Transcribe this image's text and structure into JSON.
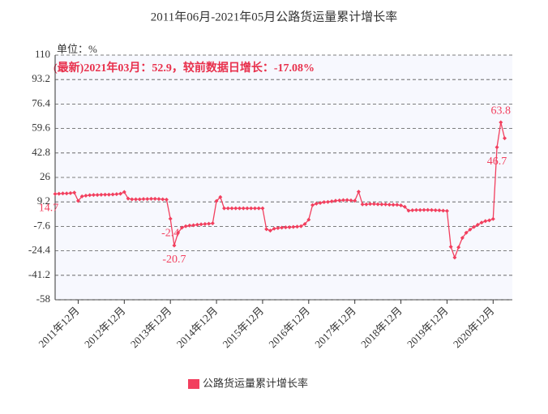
{
  "chart_data": {
    "type": "line",
    "title": "2011年06月-2021年05月公路货运量累计增长率",
    "unit_label": "单位：%",
    "annotation": "(最新)2021年03月：52.9，较前数据日增长：-17.08%",
    "categories": [
      null,
      null,
      null,
      null,
      null,
      null,
      "2011年12月",
      null,
      null,
      null,
      null,
      null,
      null,
      null,
      null,
      null,
      null,
      null,
      "2012年12月",
      null,
      null,
      null,
      null,
      null,
      null,
      null,
      null,
      null,
      null,
      null,
      "2013年12月",
      null,
      null,
      null,
      null,
      null,
      null,
      null,
      null,
      null,
      null,
      null,
      "2014年12月",
      null,
      null,
      null,
      null,
      null,
      null,
      null,
      null,
      null,
      null,
      null,
      "2015年12月",
      null,
      null,
      null,
      null,
      null,
      null,
      null,
      null,
      null,
      null,
      null,
      "2016年12月",
      null,
      null,
      null,
      null,
      null,
      null,
      null,
      null,
      null,
      null,
      null,
      "2017年12月",
      null,
      null,
      null,
      null,
      null,
      null,
      null,
      null,
      null,
      null,
      null,
      "2018年12月",
      null,
      null,
      null,
      null,
      null,
      null,
      null,
      null,
      null,
      null,
      null,
      "2019年12月",
      null,
      null,
      null,
      null,
      null,
      null,
      null,
      null,
      null,
      null,
      null,
      "2020年12月",
      null,
      null,
      null,
      null,
      null
    ],
    "series": [
      {
        "name": "公路货运量累计增长率",
        "color": "#f23f5e",
        "values": [
          14.7,
          14.8,
          15,
          15,
          15.2,
          15.6,
          9.9,
          13,
          13.5,
          13.8,
          14,
          14,
          14.1,
          14.2,
          14.2,
          14.3,
          14.5,
          14.8,
          16,
          11.5,
          11,
          11,
          11,
          11.2,
          11.2,
          11.3,
          11.3,
          11.2,
          11,
          10.8,
          -2.4,
          -20.7,
          -12,
          -8.5,
          -7.5,
          -7,
          -6.8,
          -6.5,
          -6.2,
          -6,
          -5.8,
          -5.5,
          9.8,
          12.5,
          4.8,
          4.8,
          4.8,
          4.8,
          4.8,
          4.8,
          4.8,
          4.8,
          4.8,
          4.8,
          4.8,
          -9.5,
          -10.5,
          -9.2,
          -8.8,
          -8.5,
          -8.3,
          -8.2,
          -8,
          -7.8,
          -7.5,
          -6,
          -3,
          7,
          8,
          8.5,
          9,
          9.2,
          9.6,
          10,
          10.2,
          10.4,
          10.5,
          10.2,
          10,
          16.2,
          7.5,
          7.5,
          7.8,
          7.8,
          7.6,
          7.5,
          7.5,
          7.3,
          7.2,
          7.2,
          6.8,
          5.8,
          3.2,
          3.5,
          3.6,
          3.6,
          3.7,
          3.7,
          3.6,
          3.5,
          3.4,
          3.2,
          3,
          -21.6,
          -29,
          -22,
          -15.5,
          -12,
          -9.8,
          -8,
          -6.5,
          -5,
          -4,
          -3.5,
          -2.5,
          46.7,
          63.8,
          52.9,
          null,
          null
        ],
        "value_labels": [
          "14.7",
          null,
          null,
          null,
          null,
          null,
          null,
          null,
          null,
          null,
          null,
          null,
          null,
          null,
          null,
          null,
          null,
          null,
          null,
          null,
          null,
          null,
          null,
          null,
          null,
          null,
          null,
          null,
          null,
          null,
          "-2.4",
          "-20.7",
          null,
          null,
          null,
          null,
          null,
          null,
          null,
          null,
          null,
          null,
          null,
          null,
          null,
          null,
          null,
          null,
          null,
          null,
          null,
          null,
          null,
          null,
          null,
          null,
          null,
          null,
          null,
          null,
          null,
          null,
          null,
          null,
          null,
          null,
          null,
          null,
          null,
          null,
          null,
          null,
          null,
          null,
          null,
          null,
          null,
          null,
          null,
          null,
          null,
          null,
          null,
          null,
          null,
          null,
          null,
          null,
          null,
          null,
          null,
          null,
          null,
          null,
          null,
          null,
          null,
          null,
          null,
          null,
          null,
          null,
          null,
          null,
          null,
          null,
          null,
          null,
          null,
          null,
          null,
          null,
          null,
          null,
          null,
          "46.7",
          "63.8",
          null,
          null,
          null
        ]
      }
    ],
    "ylim": [
      -58,
      110
    ],
    "yticks": [
      -58,
      -41.2,
      -24.4,
      -7.6,
      9.2,
      26,
      42.8,
      59.6,
      76.4,
      93.2,
      110
    ],
    "grid": true,
    "legend": "bottom"
  }
}
